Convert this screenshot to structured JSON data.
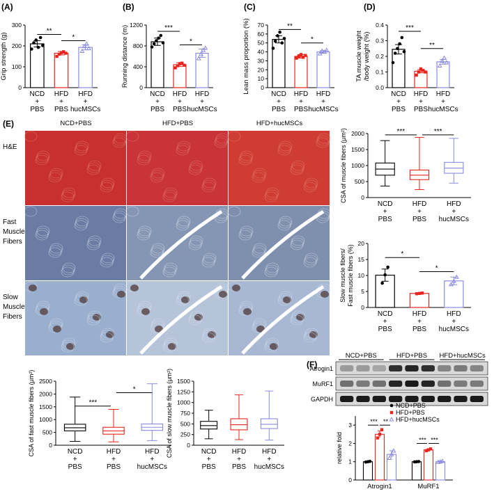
{
  "colors": {
    "ncd": "#000000",
    "hfd": "#e8241f",
    "huc": "#8a8ae0",
    "bg": "#ffffff"
  },
  "panels": [
    {
      "id": "A",
      "letter": "(A)",
      "ylabel": "Grip strength (g)",
      "ticks": [
        "0",
        "100",
        "200",
        "300"
      ],
      "ymax": 300,
      "groups": [
        {
          "lines": [
            "NCD",
            "+",
            "PBS"
          ]
        },
        {
          "lines": [
            "HFD",
            "+",
            "PBS"
          ]
        },
        {
          "lines": [
            "HFD",
            "+",
            "hucMSCs"
          ]
        }
      ],
      "means": [
        210,
        165,
        193
      ],
      "errs": [
        15,
        8,
        12
      ],
      "points": [
        [
          185,
          215,
          228,
          193,
          240,
          202
        ],
        [
          150,
          160,
          168,
          172,
          165
        ],
        [
          175,
          198,
          210,
          188
        ]
      ],
      "sig": [
        {
          "a": 0,
          "b": 1,
          "text": "**",
          "y": 255
        },
        {
          "a": 1,
          "b": 2,
          "text": "*",
          "y": 225
        }
      ]
    },
    {
      "id": "B",
      "letter": "(B)",
      "ylabel": "Running distance (m)",
      "ticks": [
        "0",
        "400",
        "800",
        "1200"
      ],
      "ymax": 1200,
      "groups": [
        {
          "lines": [
            "NCD",
            "+",
            "PBS"
          ]
        },
        {
          "lines": [
            "HFD",
            "+",
            "PBS"
          ]
        },
        {
          "lines": [
            "HFD",
            "+",
            "hucMSCs"
          ]
        }
      ],
      "means": [
        880,
        440,
        660
      ],
      "errs": [
        70,
        35,
        80
      ],
      "points": [
        [
          780,
          840,
          900,
          950,
          1000,
          860
        ],
        [
          380,
          420,
          460,
          470,
          430
        ],
        [
          560,
          640,
          720,
          760
        ]
      ],
      "sig": [
        {
          "a": 0,
          "b": 1,
          "text": "***",
          "y": 1080
        },
        {
          "a": 1,
          "b": 2,
          "text": "*",
          "y": 820
        }
      ]
    },
    {
      "id": "C",
      "letter": "(C)",
      "ylabel": "Lean mass proportion (%)",
      "ticks": [
        "0",
        "10",
        "20",
        "30",
        "40",
        "50",
        "60",
        "70"
      ],
      "ymax": 70,
      "groups": [
        {
          "lines": [
            "NCD",
            "+",
            "PBS"
          ]
        },
        {
          "lines": [
            "HFD",
            "+",
            "PBS"
          ]
        },
        {
          "lines": [
            "HFD",
            "+",
            "hucMSCs"
          ]
        }
      ],
      "means": [
        54,
        35,
        40
      ],
      "errs": [
        4,
        2,
        1.5
      ],
      "points": [
        [
          44,
          52,
          58,
          62,
          50,
          55
        ],
        [
          33,
          35,
          37,
          34,
          36
        ],
        [
          38,
          41,
          40,
          42
        ]
      ],
      "sig": [
        {
          "a": 0,
          "b": 1,
          "text": "**",
          "y": 65
        },
        {
          "a": 1,
          "b": 2,
          "text": "*",
          "y": 50
        }
      ]
    },
    {
      "id": "D",
      "letter": "(D)",
      "ylabel1": "TA muscle weight",
      "ylabel2": "/body weight (%)",
      "ticks": [
        "0.0",
        "0.1",
        "0.2",
        "0.3",
        "0.4"
      ],
      "ymax": 0.4,
      "groups": [
        {
          "lines": [
            "NCD",
            "+",
            "PBS"
          ]
        },
        {
          "lines": [
            "HFD",
            "+",
            "PBS"
          ]
        },
        {
          "lines": [
            "HFD",
            "+",
            "hucMSCs"
          ]
        }
      ],
      "means": [
        0.245,
        0.105,
        0.165
      ],
      "errs": [
        0.03,
        0.01,
        0.015
      ],
      "points": [
        [
          0.16,
          0.22,
          0.25,
          0.28,
          0.32,
          0.23
        ],
        [
          0.08,
          0.1,
          0.12,
          0.11,
          0.1
        ],
        [
          0.14,
          0.17,
          0.19,
          0.16
        ]
      ],
      "sig": [
        {
          "a": 0,
          "b": 1,
          "text": "***",
          "y": 0.36
        },
        {
          "a": 1,
          "b": 2,
          "text": "**",
          "y": 0.25
        }
      ]
    }
  ],
  "micrographs": {
    "letter": "(E)",
    "columns": [
      "NCD+PBS",
      "HFD+PBS",
      "HFD+hucMSCs"
    ],
    "rows": [
      {
        "lines": [
          "H&E"
        ]
      },
      {
        "lines": [
          "Fast",
          "Muscle",
          "Fibers"
        ]
      },
      {
        "lines": [
          "Slow",
          "Muscle",
          "Fibers"
        ]
      }
    ]
  },
  "box_panels": [
    {
      "id": "csa",
      "ylabel": "CSA of muscle fibers (μm²)",
      "ticks": [
        "0",
        "500",
        "1000",
        "1500",
        "2000"
      ],
      "ymax": 2000,
      "boxes": [
        {
          "min": 360,
          "q1": 700,
          "med": 890,
          "q3": 1080,
          "max": 1780
        },
        {
          "min": 250,
          "q1": 560,
          "med": 700,
          "q3": 860,
          "max": 1880
        },
        {
          "min": 450,
          "q1": 760,
          "med": 920,
          "q3": 1100,
          "max": 1850
        }
      ],
      "sig": [
        {
          "a": 0,
          "b": 1,
          "text": "***",
          "y": 1960
        },
        {
          "a": 1,
          "b": 2,
          "text": "***",
          "y": 1960
        }
      ],
      "groups": [
        {
          "lines": [
            "NCD",
            "+",
            "PBS"
          ]
        },
        {
          "lines": [
            "HFD",
            "+",
            "PBS"
          ]
        },
        {
          "lines": [
            "HFD",
            "+",
            "hucMSCs"
          ]
        }
      ]
    },
    {
      "id": "csa-fast",
      "ylabel": "CSA of fast muscle fibers (μm²)",
      "ticks": [
        "0",
        "500",
        "1000",
        "1500",
        "2000",
        "2500"
      ],
      "ymax": 2500,
      "boxes": [
        {
          "min": 150,
          "q1": 560,
          "med": 680,
          "q3": 820,
          "max": 1880
        },
        {
          "min": 130,
          "q1": 430,
          "med": 560,
          "q3": 700,
          "max": 1400
        },
        {
          "min": 180,
          "q1": 580,
          "med": 700,
          "q3": 830,
          "max": 2400
        }
      ],
      "sig": [
        {
          "a": 0,
          "b": 1,
          "text": "***",
          "y": 1530
        },
        {
          "a": 1,
          "b": 2,
          "text": "*",
          "y": 2050
        }
      ],
      "groups": [
        {
          "lines": [
            "NCD",
            "+",
            "PBS"
          ]
        },
        {
          "lines": [
            "HFD",
            "+",
            "PBS"
          ]
        },
        {
          "lines": [
            "HFD",
            "+",
            "hucMSCs"
          ]
        }
      ]
    },
    {
      "id": "csa-slow",
      "ylabel": "CSA of slow muscle fibers (μm²)",
      "ticks": [
        "0",
        "250",
        "500",
        "750",
        "1000",
        "1250",
        "1500"
      ],
      "ymax": 1500,
      "boxes": [
        {
          "min": 150,
          "q1": 380,
          "med": 460,
          "q3": 560,
          "max": 820
        },
        {
          "min": 130,
          "q1": 360,
          "med": 480,
          "q3": 620,
          "max": 1180
        },
        {
          "min": 120,
          "q1": 390,
          "med": 490,
          "q3": 620,
          "max": 1270
        }
      ],
      "sig": [],
      "groups": [
        {
          "lines": [
            "NCD",
            "+",
            "PBS"
          ]
        },
        {
          "lines": [
            "HFD",
            "+",
            "PBS"
          ]
        },
        {
          "lines": [
            "HFD",
            "+",
            "hucMSCs"
          ]
        }
      ]
    }
  ],
  "slow_ratio": {
    "ylabel1": "Slow muscle fibers/",
    "ylabel2": "Fast muscle fibers (%)",
    "ticks": [
      "0",
      "5",
      "10",
      "15",
      "20"
    ],
    "ymax": 20,
    "means": [
      10.1,
      4.4,
      8.3
    ],
    "errs": [
      1.9,
      0.15,
      1.2
    ],
    "points": [
      [
        7.6,
        10.2,
        12.6
      ],
      [
        4.3,
        4.4,
        4.5
      ],
      [
        7.2,
        8.2,
        9.5
      ]
    ],
    "sig": [
      {
        "a": 0,
        "b": 1,
        "text": "*",
        "y": 15.6
      },
      {
        "a": 1,
        "b": 2,
        "text": "*",
        "y": 11.2
      }
    ],
    "groups": [
      {
        "lines": [
          "NCD",
          "+",
          "PBS"
        ]
      },
      {
        "lines": [
          "HFD",
          "+",
          "PBS"
        ]
      },
      {
        "lines": [
          "HFD",
          "+",
          "hucMSCs"
        ]
      }
    ]
  },
  "western": {
    "letter": "(F)",
    "groups": [
      "NCD+PBS",
      "HFD+PBS",
      "HFD+hucMSCs"
    ],
    "rows": [
      "Atrogin1",
      "MuRF1",
      "GAPDH"
    ],
    "intensity": [
      [
        0.35,
        0.35,
        0.3,
        0.85,
        0.9,
        0.85,
        0.45,
        0.5,
        0.45
      ],
      [
        0.55,
        0.5,
        0.55,
        0.9,
        0.95,
        0.9,
        0.55,
        0.5,
        0.5
      ],
      [
        0.95,
        0.95,
        0.95,
        0.95,
        0.95,
        0.95,
        0.95,
        0.95,
        0.95
      ]
    ]
  },
  "chart_data": [
    {
      "type": "bar",
      "id": "A",
      "ylabel": "Grip strength (g)",
      "categories": [
        "NCD + PBS",
        "HFD + PBS",
        "HFD + hucMSCs"
      ],
      "values": [
        210,
        165,
        193
      ],
      "ylim": [
        0,
        300
      ]
    },
    {
      "type": "bar",
      "id": "B",
      "ylabel": "Running distance (m)",
      "categories": [
        "NCD + PBS",
        "HFD + PBS",
        "HFD + hucMSCs"
      ],
      "values": [
        880,
        440,
        660
      ],
      "ylim": [
        0,
        1200
      ]
    },
    {
      "type": "bar",
      "id": "C",
      "ylabel": "Lean mass proportion (%)",
      "categories": [
        "NCD + PBS",
        "HFD + PBS",
        "HFD + hucMSCs"
      ],
      "values": [
        54,
        35,
        40
      ],
      "ylim": [
        0,
        70
      ]
    },
    {
      "type": "bar",
      "id": "D",
      "ylabel": "TA muscle weight /body weight (%)",
      "categories": [
        "NCD + PBS",
        "HFD + PBS",
        "HFD + hucMSCs"
      ],
      "values": [
        0.245,
        0.105,
        0.165
      ],
      "ylim": [
        0,
        0.4
      ]
    },
    {
      "type": "bar",
      "id": "relative-fold",
      "ylabel": "relative fold",
      "categories": [
        "Atrogin1",
        "MuRF1"
      ],
      "series": [
        {
          "name": "NCD+PBS",
          "values": [
            1.0,
            1.0
          ]
        },
        {
          "name": "HFD+PBS",
          "values": [
            2.5,
            1.65
          ]
        },
        {
          "name": "HFD+hucMSCs",
          "values": [
            1.4,
            1.0
          ]
        }
      ],
      "ylim": [
        0,
        3.5
      ]
    }
  ],
  "fold": {
    "ylabel": "relative fold",
    "ticks": [
      "0",
      "1",
      "2",
      "3"
    ],
    "ymax": 3.5,
    "categories": [
      "Atrogin1",
      "MuRF1"
    ],
    "legend": [
      "NCD+PBS",
      "HFD+PBS",
      "HFD+hucMSCs"
    ],
    "means": [
      [
        1.0,
        2.5,
        1.4
      ],
      [
        1.0,
        1.65,
        1.0
      ]
    ],
    "errs": [
      [
        0.03,
        0.18,
        0.2
      ],
      [
        0.02,
        0.04,
        0.03
      ]
    ],
    "points": [
      [
        [
          0.98,
          1.0,
          1.02
        ],
        [
          2.3,
          2.5,
          2.75
        ],
        [
          1.2,
          1.4,
          1.6
        ]
      ],
      [
        [
          0.99,
          1.0,
          1.01
        ],
        [
          1.6,
          1.65,
          1.7
        ],
        [
          0.98,
          1.0,
          1.03
        ]
      ]
    ],
    "sig": [
      {
        "cat": 0,
        "a": 0,
        "b": 1,
        "text": "***"
      },
      {
        "cat": 0,
        "a": 1,
        "b": 2,
        "text": "**"
      },
      {
        "cat": 1,
        "a": 0,
        "b": 1,
        "text": "***"
      },
      {
        "cat": 1,
        "a": 1,
        "b": 2,
        "text": "***"
      }
    ]
  }
}
